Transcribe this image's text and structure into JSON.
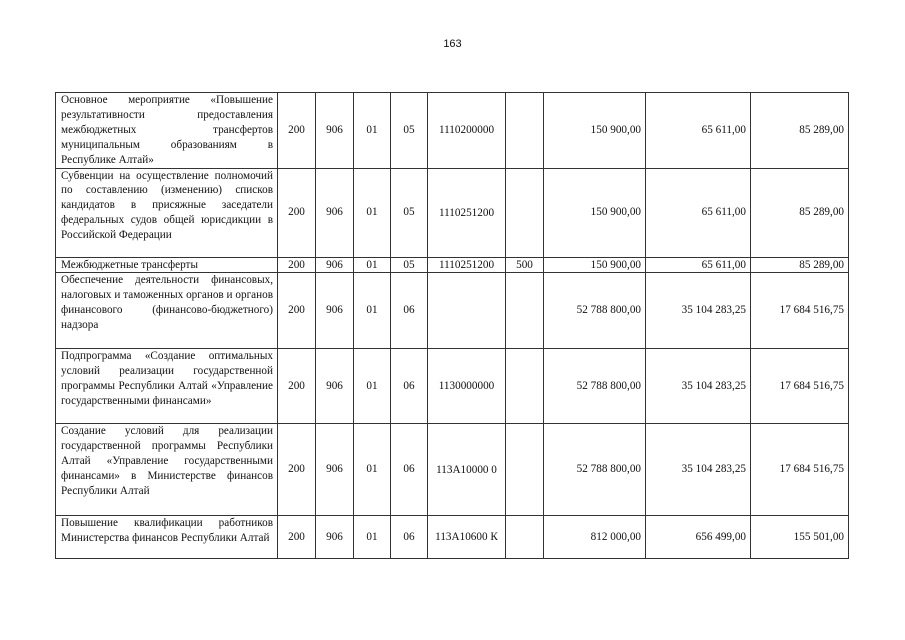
{
  "page_number": "163",
  "rows": [
    {
      "name": "Основное мероприятие «Повышение результативности предоставления межбюджетных трансфертов муниципальным образованиям в Республике Алтай»",
      "c1": "200",
      "c2": "906",
      "c3": "01",
      "c4": "05",
      "code": "1110200000",
      "vr": "",
      "v1": "150 900,00",
      "v2": "65 611,00",
      "v3": "85 289,00"
    },
    {
      "name": "Субвенции на осуществление полномочий по составлению (изменению) списков кандидатов в присяжные заседатели федеральных судов общей юрисдикции в Российской Федерации",
      "c1": "200",
      "c2": "906",
      "c3": "01",
      "c4": "05",
      "code": "1110251200",
      "vr": "",
      "v1": "150 900,00",
      "v2": "65 611,00",
      "v3": "85 289,00"
    },
    {
      "name": "Межбюджетные трансферты",
      "c1": "200",
      "c2": "906",
      "c3": "01",
      "c4": "05",
      "code": "1110251200",
      "vr": "500",
      "v1": "150 900,00",
      "v2": "65 611,00",
      "v3": "85 289,00"
    },
    {
      "name": "Обеспечение деятельности финансовых, налоговых и таможенных органов и органов финансового (финансово-бюджетного) надзора",
      "c1": "200",
      "c2": "906",
      "c3": "01",
      "c4": "06",
      "code": "",
      "vr": "",
      "v1": "52 788 800,00",
      "v2": "35 104 283,25",
      "v3": "17 684 516,75"
    },
    {
      "name": "Подпрограмма «Создание оптимальных условий реализации государственной программы Республики Алтай «Управление государственными финансами»",
      "c1": "200",
      "c2": "906",
      "c3": "01",
      "c4": "06",
      "code": "1130000000",
      "vr": "",
      "v1": "52 788 800,00",
      "v2": "35 104 283,25",
      "v3": "17 684 516,75"
    },
    {
      "name": "Создание условий для реализации государственной программы Республики Алтай «Управление государственными финансами» в Министерстве финансов Республики Алтай",
      "c1": "200",
      "c2": "906",
      "c3": "01",
      "c4": "06",
      "code": "113А10000 0",
      "vr": "",
      "v1": "52 788 800,00",
      "v2": "35 104 283,25",
      "v3": "17 684 516,75"
    },
    {
      "name": "Повышение квалификации работников Министерства финансов Республики Алтай",
      "c1": "200",
      "c2": "906",
      "c3": "01",
      "c4": "06",
      "code": "113А10600 К",
      "vr": "",
      "v1": "812 000,00",
      "v2": "656 499,00",
      "v3": "155 501,00"
    }
  ]
}
